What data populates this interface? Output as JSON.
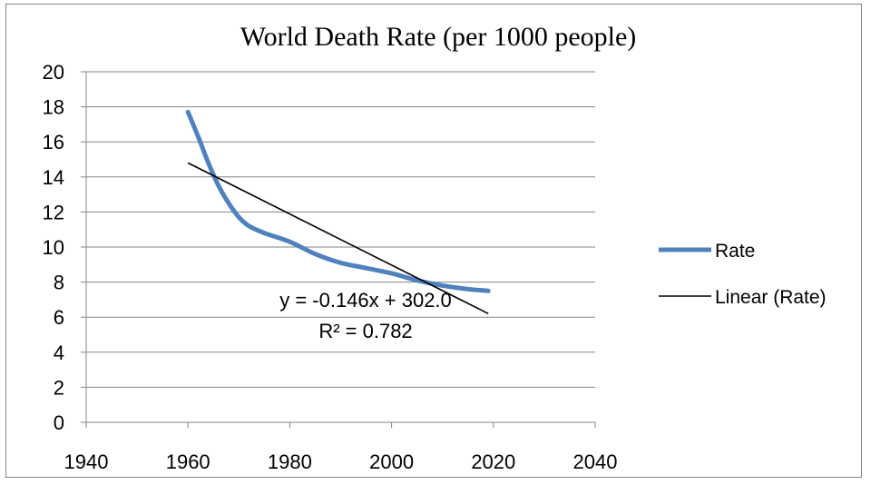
{
  "chart_data": {
    "type": "line",
    "title": "World Death Rate (per 1000 people)",
    "xlabel": "",
    "ylabel": "",
    "xlim": [
      1940,
      2040
    ],
    "ylim": [
      0,
      20
    ],
    "x_ticks": [
      1940,
      1960,
      1980,
      2000,
      2020,
      2040
    ],
    "y_ticks": [
      0,
      2,
      4,
      6,
      8,
      10,
      12,
      14,
      16,
      18,
      20
    ],
    "grid": true,
    "legend_position": "right",
    "series": [
      {
        "name": "Rate",
        "color": "#4f81bd",
        "x": [
          1960,
          1962,
          1964,
          1966,
          1968,
          1970,
          1972,
          1975,
          1980,
          1985,
          1990,
          1995,
          2000,
          2005,
          2010,
          2015,
          2019
        ],
        "y": [
          17.7,
          16.3,
          14.8,
          13.5,
          12.5,
          11.7,
          11.2,
          10.8,
          10.3,
          9.6,
          9.1,
          8.8,
          8.5,
          8.1,
          7.8,
          7.6,
          7.5
        ]
      }
    ],
    "trendline": {
      "name": "Linear (Rate)",
      "color": "#000000",
      "x": [
        1960,
        2019
      ],
      "y": [
        14.8,
        6.2
      ],
      "equation": "y = -0.146x + 302.0",
      "r_squared": "R² = 0.782"
    }
  }
}
